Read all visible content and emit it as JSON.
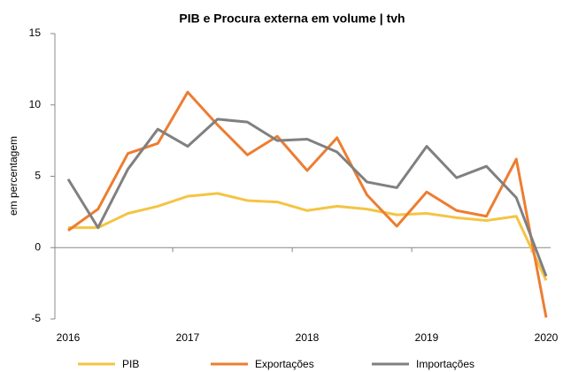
{
  "chart_data": {
    "type": "line",
    "title": "PIB e Procura externa em volume | tvh",
    "y_label": "em percentagem",
    "categories": [
      "2016",
      null,
      null,
      null,
      "2017",
      null,
      null,
      null,
      "2018",
      null,
      null,
      null,
      "2019",
      null,
      null,
      null,
      "2020"
    ],
    "series": [
      {
        "name": "PIB",
        "color": "#f4c443",
        "values": [
          1.4,
          1.4,
          2.4,
          2.9,
          3.6,
          3.8,
          3.3,
          3.2,
          2.6,
          2.9,
          2.7,
          2.3,
          2.4,
          2.1,
          1.9,
          2.2,
          -2.3
        ]
      },
      {
        "name": "Exportações",
        "color": "#ed7d31",
        "values": [
          1.2,
          2.7,
          6.6,
          7.3,
          10.9,
          8.6,
          6.5,
          7.8,
          5.4,
          7.7,
          3.7,
          1.5,
          3.9,
          2.6,
          2.2,
          6.2,
          -4.9
        ]
      },
      {
        "name": "Importações",
        "color": "#808080",
        "values": [
          4.8,
          1.4,
          5.5,
          8.3,
          7.1,
          9.0,
          8.8,
          7.5,
          7.6,
          6.7,
          4.6,
          4.2,
          7.1,
          4.9,
          5.7,
          3.5,
          -2.0
        ]
      }
    ],
    "ylim": [
      -5,
      15
    ],
    "yticks": [
      -5,
      0,
      5,
      10,
      15
    ],
    "legend": "bottom"
  }
}
